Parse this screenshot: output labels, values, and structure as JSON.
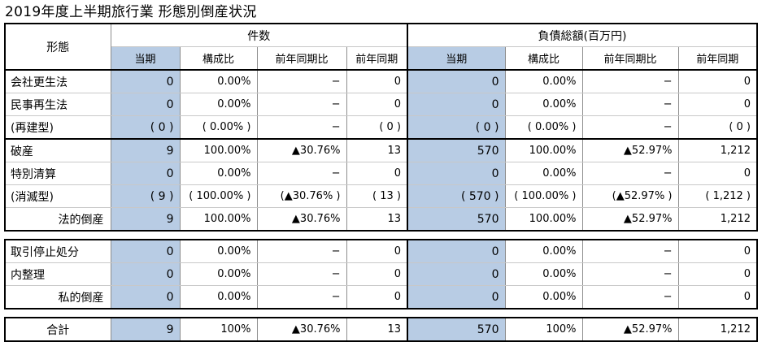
{
  "title": "2019年度上半期旅行業 形態別倒産状況",
  "headers": {
    "form": "形態",
    "count_group": "件数",
    "debt_group": "負債総額(百万円)",
    "sub": [
      "当期",
      "構成比",
      "前年同期比",
      "前年同期"
    ]
  },
  "rows": [
    {
      "label": "会社更生法",
      "c": [
        "0",
        "0.00%",
        "−",
        "0"
      ],
      "d": [
        "0",
        "0.00%",
        "−",
        "0"
      ]
    },
    {
      "label": "民事再生法",
      "c": [
        "0",
        "0.00%",
        "−",
        "0"
      ],
      "d": [
        "0",
        "0.00%",
        "−",
        "0"
      ]
    },
    {
      "label": "(再建型)",
      "c": [
        "( 0 )",
        "( 0.00% )",
        "−",
        "( 0 )"
      ],
      "d": [
        "( 0 )",
        "( 0.00% )",
        "−",
        "( 0 )"
      ]
    },
    {
      "label": "破産",
      "c": [
        "9",
        "100.00%",
        "▲30.76%",
        "13"
      ],
      "d": [
        "570",
        "100.00%",
        "▲52.97%",
        "1,212"
      ]
    },
    {
      "label": "特別清算",
      "c": [
        "0",
        "0.00%",
        "−",
        "0"
      ],
      "d": [
        "0",
        "0.00%",
        "−",
        "0"
      ]
    },
    {
      "label": "(消滅型)",
      "c": [
        "( 9 )",
        "( 100.00% )",
        "(▲30.76% )",
        "( 13 )"
      ],
      "d": [
        "( 570 )",
        "( 100.00% )",
        "(▲52.97% )",
        "( 1,212 )"
      ]
    },
    {
      "label": "法的倒産",
      "c": [
        "9",
        "100.00%",
        "▲30.76%",
        "13"
      ],
      "d": [
        "570",
        "100.00%",
        "▲52.97%",
        "1,212"
      ]
    },
    {
      "label": "取引停止処分",
      "c": [
        "0",
        "0.00%",
        "−",
        "0"
      ],
      "d": [
        "0",
        "0.00%",
        "−",
        "0"
      ]
    },
    {
      "label": "内整理",
      "c": [
        "0",
        "0.00%",
        "−",
        "0"
      ],
      "d": [
        "0",
        "0.00%",
        "−",
        "0"
      ]
    },
    {
      "label": "私的倒産",
      "c": [
        "0",
        "0.00%",
        "−",
        "0"
      ],
      "d": [
        "0",
        "0.00%",
        "−",
        "0"
      ]
    },
    {
      "label": "合計",
      "c": [
        "9",
        "100%",
        "▲30.76%",
        "13"
      ],
      "d": [
        "570",
        "100%",
        "▲52.97%",
        "1,212"
      ]
    }
  ],
  "colors": {
    "current_period_fill": "#b8cce4"
  }
}
